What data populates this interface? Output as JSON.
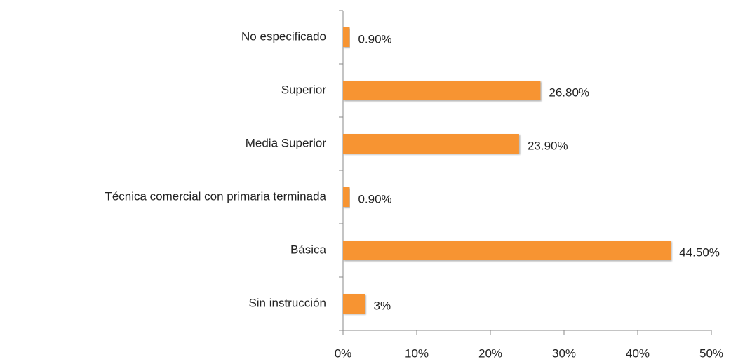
{
  "chart_data": {
    "type": "barh",
    "categories": [
      "Sin instrucción",
      "Básica",
      "Técnica comercial con primaria terminada",
      "Media Superior",
      "Superior",
      "No especificado"
    ],
    "values": [
      3,
      44.5,
      0.9,
      23.9,
      26.8,
      0.9
    ],
    "value_labels": [
      "3%",
      "44.50%",
      "0.90%",
      "23.90%",
      "26.80%",
      "0.90%"
    ],
    "color": "#f79431",
    "xlim": [
      0,
      50
    ],
    "xticks": [
      {
        "value": 0,
        "label": "0%"
      },
      {
        "value": 10,
        "label": "10%"
      },
      {
        "value": 20,
        "label": "20%"
      },
      {
        "value": 30,
        "label": "30%"
      },
      {
        "value": 40,
        "label": "40%"
      },
      {
        "value": 50,
        "label": "50%"
      }
    ]
  }
}
